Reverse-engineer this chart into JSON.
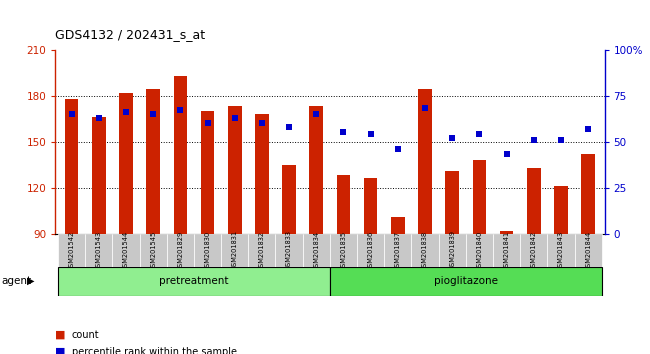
{
  "title": "GDS4132 / 202431_s_at",
  "samples": [
    "GSM201542",
    "GSM201543",
    "GSM201544",
    "GSM201545",
    "GSM201829",
    "GSM201830",
    "GSM201831",
    "GSM201832",
    "GSM201833",
    "GSM201834",
    "GSM201835",
    "GSM201836",
    "GSM201837",
    "GSM201838",
    "GSM201839",
    "GSM201840",
    "GSM201841",
    "GSM201842",
    "GSM201843",
    "GSM201844"
  ],
  "counts": [
    178,
    166,
    182,
    184,
    193,
    170,
    173,
    168,
    135,
    173,
    128,
    126,
    101,
    184,
    131,
    138,
    92,
    133,
    121,
    142
  ],
  "percentiles": [
    65,
    63,
    66,
    65,
    67,
    60,
    63,
    60,
    58,
    65,
    55,
    54,
    46,
    68,
    52,
    54,
    43,
    51,
    51,
    57
  ],
  "ymin": 90,
  "ymax": 210,
  "yticks_left": [
    90,
    120,
    150,
    180,
    210
  ],
  "yticks_right": [
    0,
    25,
    50,
    75,
    100
  ],
  "group_labels": [
    "pretreatment",
    "pioglitazone"
  ],
  "bar_color": "#cc2200",
  "dot_color": "#0000cc",
  "plot_bg_color": "#ffffff",
  "sample_box_color": "#c8c8c8",
  "pre_color": "#90ee90",
  "pio_color": "#55dd55",
  "agent_label": "agent",
  "legend_count": "count",
  "legend_pct": "percentile rank within the sample",
  "dotted_lines": [
    120,
    150,
    180
  ]
}
